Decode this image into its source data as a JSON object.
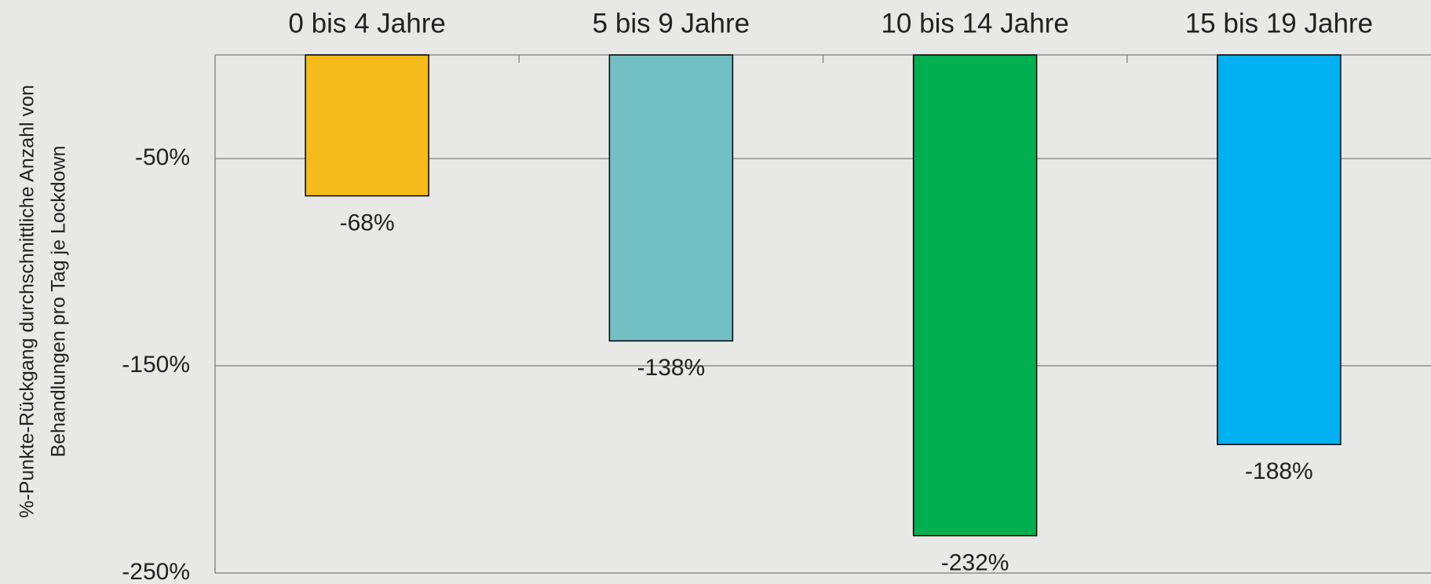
{
  "chart_data": {
    "type": "bar",
    "y_label": [
      "%-Punkte-Rückgang durchschnittliche Anzahl von",
      "Behandlungen pro Tag  je Lockdown"
    ],
    "categories": [
      "0 bis 4 Jahre",
      "5 bis 9 Jahre",
      "10 bis 14 Jahre",
      "15 bis 19 Jahre"
    ],
    "values": [
      -68,
      -138,
      -232,
      -188
    ],
    "value_labels": [
      "-68%",
      "-138%",
      "-232%",
      "-188%"
    ],
    "colors": [
      "#f5bb1a",
      "#72bfc4",
      "#00b050",
      "#00b0f0"
    ],
    "ylim": [
      -250,
      0
    ],
    "yticks": [
      {
        "value": -50,
        "label": "-50%"
      },
      {
        "value": -150,
        "label": "-150%"
      },
      {
        "value": -250,
        "label": "-250%"
      }
    ],
    "grid": true
  }
}
